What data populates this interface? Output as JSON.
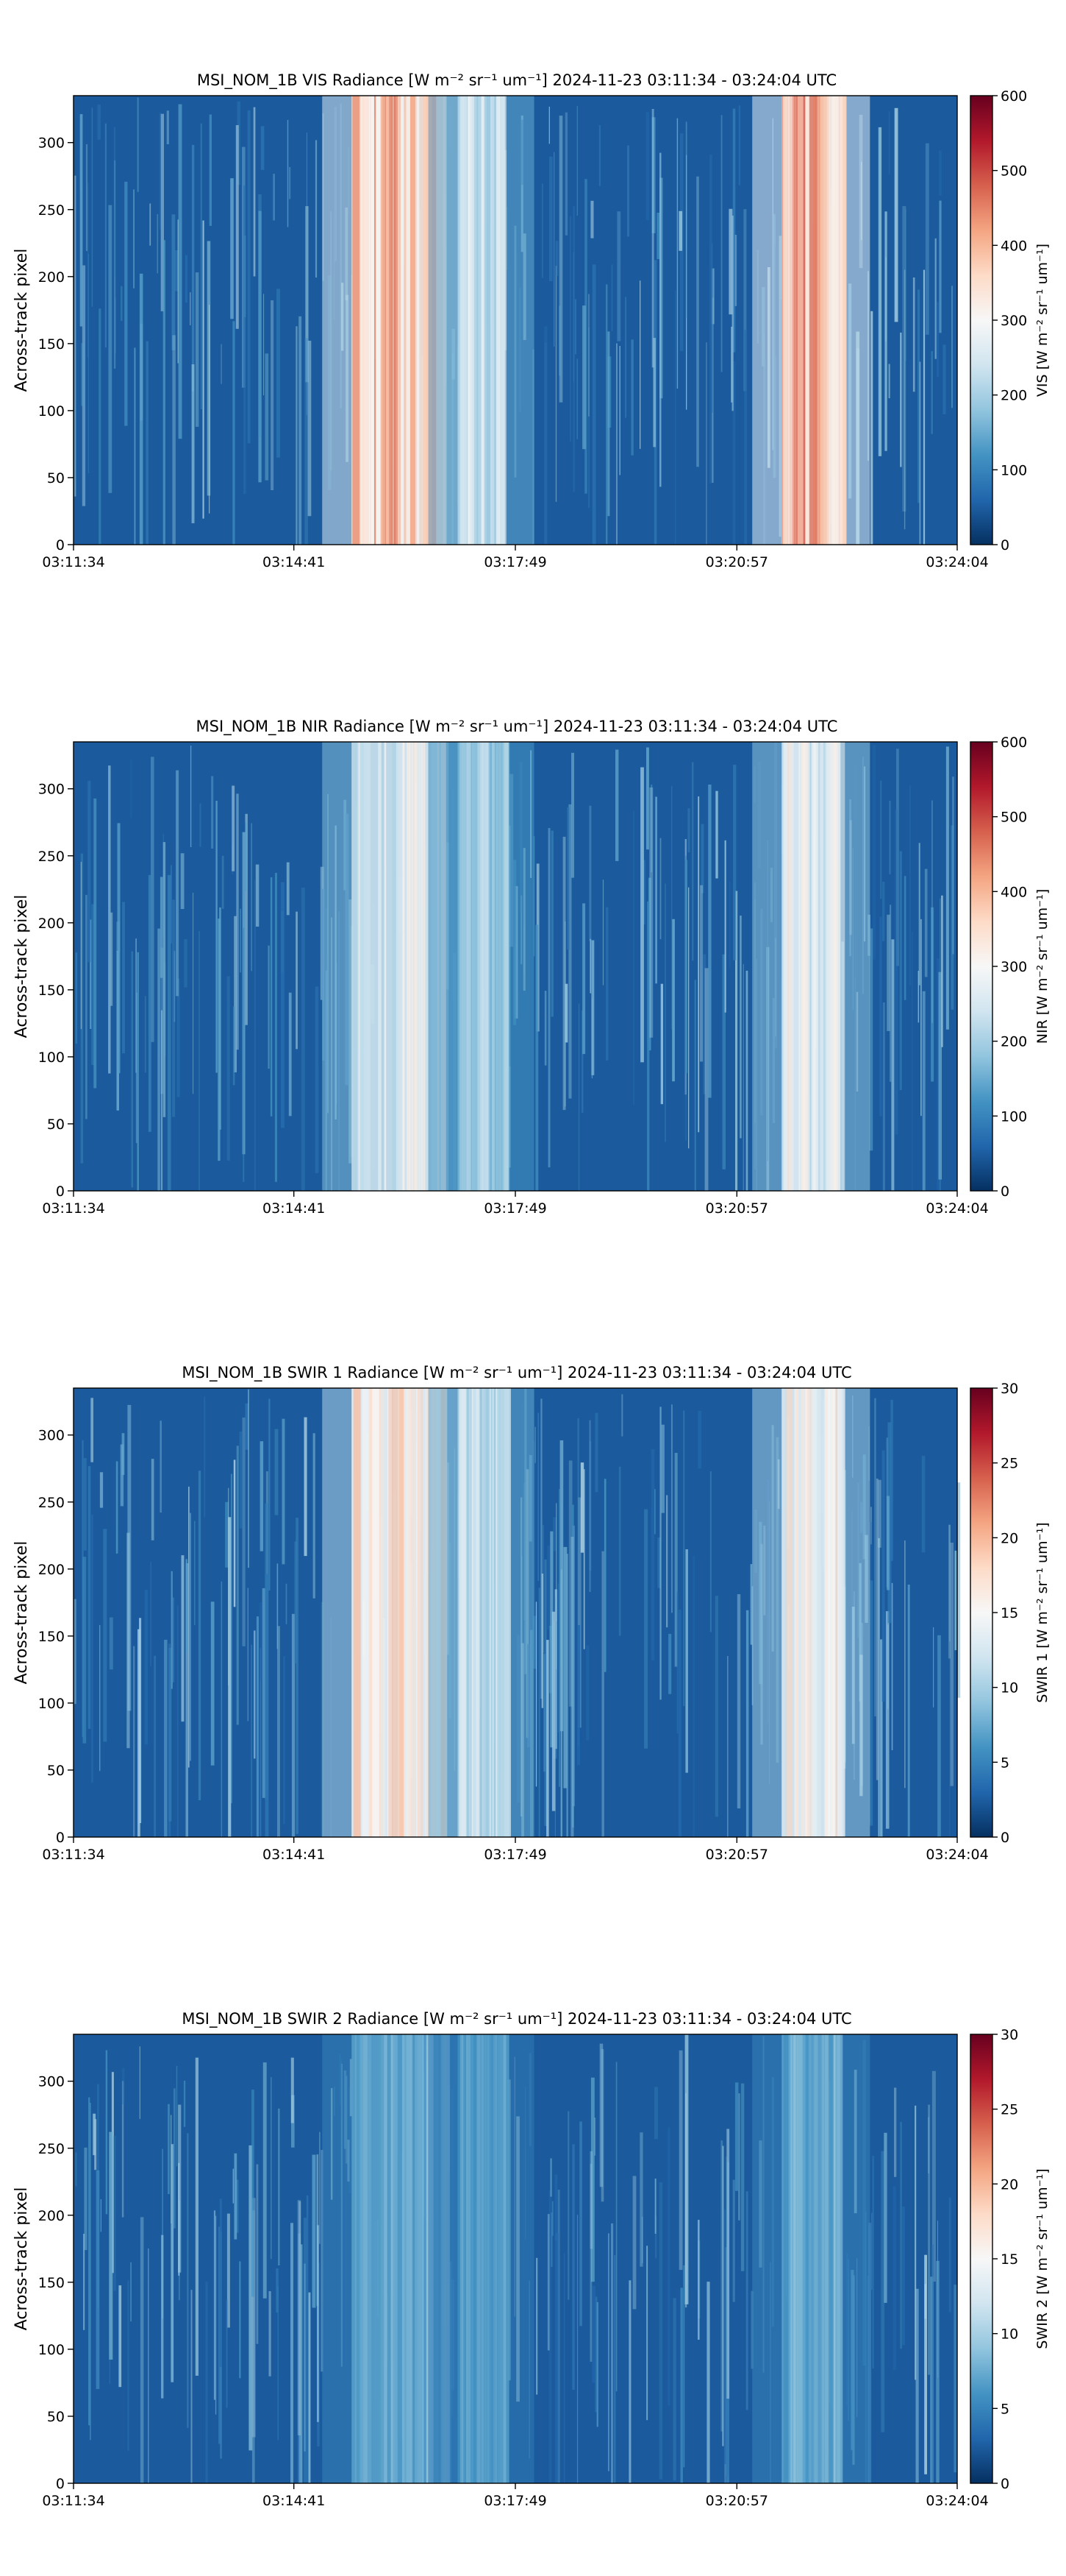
{
  "chart_data": [
    {
      "type": "heatmap",
      "title_prefix": "MSI_NOM_1B VIS Radiance",
      "unit": "W m⁻² sr⁻¹ um⁻¹",
      "title_date": "2024-11-23",
      "title_time_range": "03:11:34 - 03:24:04 UTC",
      "ylabel": "Across-track pixel",
      "x_ticks": [
        "03:11:34",
        "03:14:41",
        "03:17:49",
        "03:20:57",
        "03:24:04"
      ],
      "ylim": [
        0,
        335
      ],
      "y_ticks": [
        0,
        50,
        100,
        150,
        200,
        250,
        300
      ],
      "colorbar_label": "VIS [W m⁻² sr⁻¹ um⁻¹]",
      "colorbar_range": [
        0,
        600
      ],
      "colorbar_ticks": [
        0,
        100,
        200,
        300,
        400,
        500,
        600
      ],
      "colormap": "RdBu_r",
      "bright_bands": [
        {
          "from": "03:15:30",
          "to": "03:16:50",
          "level": 410
        },
        {
          "from": "03:17:00",
          "to": "03:17:40",
          "level": 240
        },
        {
          "from": "03:21:35",
          "to": "03:22:25",
          "level": 430
        }
      ]
    },
    {
      "type": "heatmap",
      "title_prefix": "MSI_NOM_1B NIR Radiance",
      "unit": "W m⁻² sr⁻¹ um⁻¹",
      "title_date": "2024-11-23",
      "title_time_range": "03:11:34 - 03:24:04 UTC",
      "ylabel": "Across-track pixel",
      "x_ticks": [
        "03:11:34",
        "03:14:41",
        "03:17:49",
        "03:20:57",
        "03:24:04"
      ],
      "ylim": [
        0,
        335
      ],
      "y_ticks": [
        0,
        50,
        100,
        150,
        200,
        250,
        300
      ],
      "colorbar_label": "NIR [W m⁻² sr⁻¹ um⁻¹]",
      "colorbar_range": [
        0,
        600
      ],
      "colorbar_ticks": [
        0,
        100,
        200,
        300,
        400,
        500,
        600
      ],
      "colormap": "RdBu_r",
      "bright_bands": [
        {
          "from": "03:15:30",
          "to": "03:16:50",
          "level": 280
        },
        {
          "from": "03:17:00",
          "to": "03:17:40",
          "level": 200
        },
        {
          "from": "03:21:35",
          "to": "03:22:25",
          "level": 290
        }
      ]
    },
    {
      "type": "heatmap",
      "title_prefix": "MSI_NOM_1B SWIR 1 Radiance",
      "unit": "W m⁻² sr⁻¹ um⁻¹",
      "title_date": "2024-11-23",
      "title_time_range": "03:11:34 - 03:24:04 UTC",
      "ylabel": "Across-track pixel",
      "x_ticks": [
        "03:11:34",
        "03:14:41",
        "03:17:49",
        "03:20:57",
        "03:24:04"
      ],
      "ylim": [
        0,
        335
      ],
      "y_ticks": [
        0,
        50,
        100,
        150,
        200,
        250,
        300
      ],
      "colorbar_label": "SWIR 1 [W m⁻² sr⁻¹ um⁻¹]",
      "colorbar_range": [
        0,
        30
      ],
      "colorbar_ticks": [
        0,
        5,
        10,
        15,
        20,
        25,
        30
      ],
      "colormap": "RdBu_r",
      "bright_bands": [
        {
          "from": "03:15:30",
          "to": "03:16:50",
          "level": 17
        },
        {
          "from": "03:17:00",
          "to": "03:17:40",
          "level": 12
        },
        {
          "from": "03:21:35",
          "to": "03:22:25",
          "level": 16
        }
      ]
    },
    {
      "type": "heatmap",
      "title_prefix": "MSI_NOM_1B SWIR 2 Radiance",
      "unit": "W m⁻² sr⁻¹ um⁻¹",
      "title_date": "2024-11-23",
      "title_time_range": "03:11:34 - 03:24:04 UTC",
      "ylabel": "Across-track pixel",
      "x_ticks": [
        "03:11:34",
        "03:14:41",
        "03:17:49",
        "03:20:57",
        "03:24:04"
      ],
      "ylim": [
        0,
        335
      ],
      "y_ticks": [
        0,
        50,
        100,
        150,
        200,
        250,
        300
      ],
      "colorbar_label": "SWIR 2 [W m⁻² sr⁻¹ um⁻¹]",
      "colorbar_range": [
        0,
        30
      ],
      "colorbar_ticks": [
        0,
        5,
        10,
        15,
        20,
        25,
        30
      ],
      "colormap": "RdBu_r",
      "bright_bands": [
        {
          "from": "03:15:30",
          "to": "03:16:50",
          "level": 8
        },
        {
          "from": "03:17:00",
          "to": "03:17:40",
          "level": 7
        },
        {
          "from": "03:21:35",
          "to": "03:22:25",
          "level": 8
        }
      ]
    }
  ]
}
